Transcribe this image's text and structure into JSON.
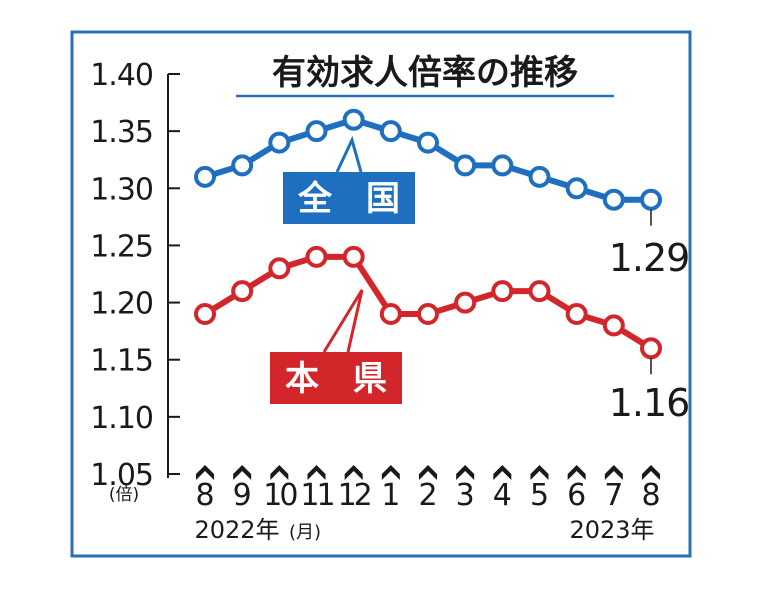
{
  "chart_data": {
    "type": "line",
    "title": "有効求人倍率の推移",
    "y_unit": "(倍)",
    "x_unit": "(月)",
    "ylim": [
      1.05,
      1.4
    ],
    "y_ticks": [
      "1.40",
      "1.35",
      "1.30",
      "1.25",
      "1.20",
      "1.15",
      "1.10",
      "1.05"
    ],
    "categories": [
      "8",
      "9",
      "10",
      "11",
      "12",
      "1",
      "2",
      "3",
      "4",
      "5",
      "6",
      "7",
      "8"
    ],
    "year_start_label": "2022年",
    "year_end_label": "2023年",
    "grid": false,
    "series": [
      {
        "name": "全　国",
        "color": "#1f6fc0",
        "values": [
          1.31,
          1.32,
          1.34,
          1.35,
          1.36,
          1.35,
          1.34,
          1.32,
          1.32,
          1.31,
          1.3,
          1.29,
          1.29
        ],
        "end_label": "1.29"
      },
      {
        "name": "本　県",
        "color": "#d3262b",
        "values": [
          1.19,
          1.21,
          1.23,
          1.24,
          1.24,
          1.19,
          1.19,
          1.2,
          1.21,
          1.21,
          1.19,
          1.18,
          1.16
        ],
        "end_label": "1.16"
      }
    ]
  }
}
